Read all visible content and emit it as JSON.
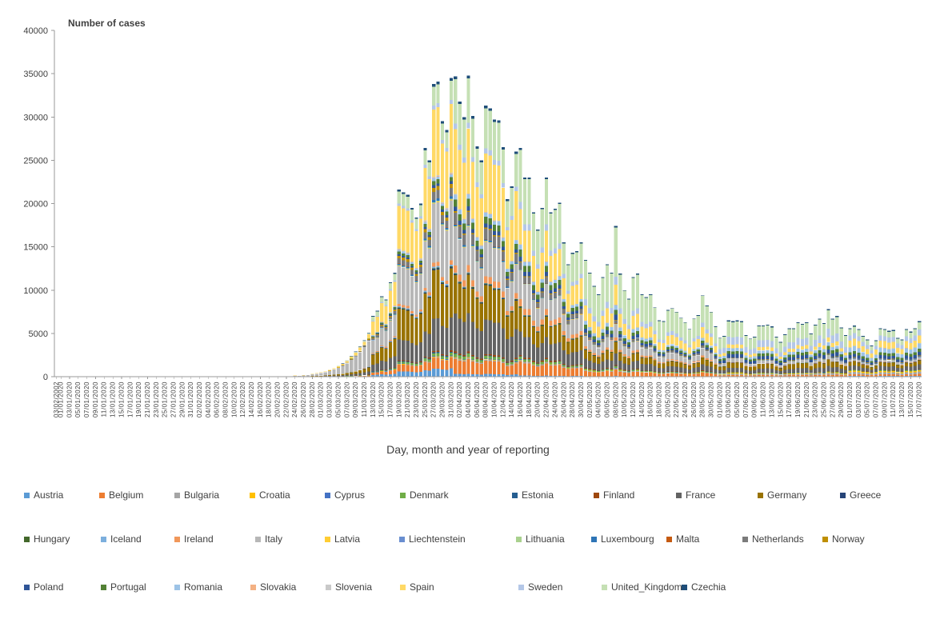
{
  "chart": {
    "title": "Number of cases",
    "xlabel": "Day, month and year of reporting"
  },
  "chart_data": {
    "type": "stacked-bar",
    "title": "Number of cases",
    "xlabel": "Day, month and year of reporting",
    "ylabel": "",
    "ylim": [
      0,
      40000
    ],
    "ytick_step": 5000,
    "grid": false,
    "legend_position": "bottom",
    "values_are_estimates": true,
    "x_axis": {
      "first_label": "03/02/2002",
      "daily_range_start": "01/01/2020",
      "daily_range_end": "17/07/2020",
      "tick_label_every_days": 2
    },
    "totals": [
      0,
      0,
      0,
      0,
      0,
      0,
      0,
      0,
      0,
      0,
      0,
      0,
      0,
      0,
      0,
      0,
      0,
      0,
      0,
      0,
      0,
      0,
      0,
      0,
      0,
      0,
      0,
      0,
      0,
      0,
      0,
      0,
      0,
      0,
      0,
      0,
      0,
      0,
      0,
      0,
      0,
      0,
      0,
      0,
      0,
      0,
      0,
      0,
      0,
      0,
      0,
      0,
      0,
      30,
      60,
      130,
      140,
      180,
      250,
      330,
      420,
      530,
      650,
      800,
      1000,
      1250,
      1550,
      1900,
      2400,
      2900,
      3500,
      4200,
      5100,
      7000,
      7600,
      9300,
      8900,
      10900,
      12000,
      21600,
      21300,
      21000,
      19500,
      18400,
      20000,
      26400,
      25000,
      33800,
      34100,
      29500,
      28500,
      34500,
      34700,
      31800,
      30000,
      34800,
      30100,
      26600,
      25000,
      31300,
      31000,
      29700,
      29600,
      26500,
      20500,
      22000,
      26000,
      26400,
      23000,
      23000,
      19000,
      17000,
      19500,
      23000,
      19000,
      19400,
      20100,
      15500,
      13000,
      14300,
      14500,
      15500,
      13500,
      12000,
      10500,
      9500,
      11500,
      13000,
      12000,
      17400,
      11900,
      10000,
      9000,
      11500,
      11900,
      9500,
      9200,
      9500,
      8000,
      6500,
      6400,
      7700,
      7900,
      7500,
      6800,
      6300,
      5500,
      6700,
      7100,
      9400,
      8200,
      7500,
      5800,
      4500,
      4700,
      6500,
      6400,
      6500,
      6400,
      4800,
      4400,
      4600,
      5900,
      5900,
      6000,
      5800,
      4600,
      4000,
      4900,
      5600,
      5600,
      6300,
      6100,
      6300,
      5000,
      6000,
      6700,
      6200,
      7800,
      6700,
      7000,
      5700,
      4800,
      5600,
      5900,
      5500,
      4700,
      4300,
      3600,
      4200,
      5600,
      5500,
      5300,
      5400,
      4500,
      4300,
      5500,
      5200,
      5600,
      6400
    ],
    "phase_starts": [
      73,
      92,
      107,
      122,
      153,
      183
    ],
    "series": [
      {
        "name": "Austria",
        "color": "#5B9BD5",
        "phase_weights": [
          0.01,
          0.03,
          0.01,
          0.005,
          0.004,
          0.008,
          0.015
        ]
      },
      {
        "name": "Belgium",
        "color": "#ED7D31",
        "phase_weights": [
          0.015,
          0.04,
          0.05,
          0.06,
          0.04,
          0.02,
          0.03
        ]
      },
      {
        "name": "Bulgaria",
        "color": "#A5A5A5",
        "phase_weights": [
          0.002,
          0.002,
          0.004,
          0.005,
          0.006,
          0.02,
          0.04
        ]
      },
      {
        "name": "Croatia",
        "color": "#FFC000",
        "phase_weights": [
          0.002,
          0.003,
          0.002,
          0.002,
          0.002,
          0.01,
          0.025
        ]
      },
      {
        "name": "Cyprus",
        "color": "#4472C4",
        "phase_weights": [
          0.001,
          0.002,
          0.002,
          0.002,
          0.001,
          0.002,
          0.002
        ]
      },
      {
        "name": "Denmark",
        "color": "#70AD47",
        "phase_weights": [
          0.01,
          0.01,
          0.01,
          0.01,
          0.01,
          0.01,
          0.01
        ]
      },
      {
        "name": "Estonia",
        "color": "#255E91",
        "phase_weights": [
          0.002,
          0.004,
          0.002,
          0.002,
          0.002,
          0.002,
          0.002
        ]
      },
      {
        "name": "Finland",
        "color": "#9E480E",
        "phase_weights": [
          0.005,
          0.005,
          0.005,
          0.006,
          0.006,
          0.004,
          0.003
        ]
      },
      {
        "name": "France",
        "color": "#636363",
        "phase_weights": [
          0.08,
          0.12,
          0.13,
          0.1,
          0.07,
          0.07,
          0.08
        ]
      },
      {
        "name": "Germany",
        "color": "#997300",
        "phase_weights": [
          0.1,
          0.18,
          0.13,
          0.1,
          0.07,
          0.08,
          0.07
        ]
      },
      {
        "name": "Greece",
        "color": "#264478",
        "phase_weights": [
          0.004,
          0.004,
          0.003,
          0.002,
          0.002,
          0.003,
          0.005
        ]
      },
      {
        "name": "Hungary",
        "color": "#43682B",
        "phase_weights": [
          0.002,
          0.003,
          0.003,
          0.004,
          0.004,
          0.003,
          0.003
        ]
      },
      {
        "name": "Iceland",
        "color": "#7CAFDD",
        "phase_weights": [
          0.006,
          0.006,
          0.002,
          0.001,
          0.001,
          0.001,
          0.001
        ]
      },
      {
        "name": "Ireland",
        "color": "#F1975A",
        "phase_weights": [
          0.005,
          0.015,
          0.025,
          0.03,
          0.02,
          0.005,
          0.004
        ]
      },
      {
        "name": "Italy",
        "color": "#B7B7B7",
        "phase_weights": [
          0.62,
          0.22,
          0.13,
          0.12,
          0.08,
          0.05,
          0.04
        ]
      },
      {
        "name": "Latvia",
        "color": "#FFCD33",
        "phase_weights": [
          0.001,
          0.002,
          0.001,
          0.001,
          0.001,
          0.001,
          0.001
        ]
      },
      {
        "name": "Liechtenstein",
        "color": "#698ED0",
        "phase_weights": [
          0.0005,
          0.0005,
          0.0003,
          0.0002,
          0.0002,
          0.0002,
          0.0002
        ]
      },
      {
        "name": "Lithuania",
        "color": "#A9D18E",
        "phase_weights": [
          0.002,
          0.003,
          0.002,
          0.002,
          0.002,
          0.002,
          0.002
        ]
      },
      {
        "name": "Luxembourg",
        "color": "#2E75B6",
        "phase_weights": [
          0.003,
          0.008,
          0.005,
          0.002,
          0.001,
          0.002,
          0.005
        ]
      },
      {
        "name": "Malta",
        "color": "#C55A11",
        "phase_weights": [
          0.001,
          0.001,
          0.001,
          0.001,
          0.001,
          0.001,
          0.001
        ]
      },
      {
        "name": "Netherlands",
        "color": "#7B7B7B",
        "phase_weights": [
          0.015,
          0.03,
          0.04,
          0.03,
          0.02,
          0.01,
          0.015
        ]
      },
      {
        "name": "Norway",
        "color": "#BF8F00",
        "phase_weights": [
          0.02,
          0.015,
          0.005,
          0.004,
          0.003,
          0.003,
          0.003
        ]
      },
      {
        "name": "Poland",
        "color": "#2F5597",
        "phase_weights": [
          0.003,
          0.01,
          0.015,
          0.02,
          0.03,
          0.06,
          0.06
        ]
      },
      {
        "name": "Portugal",
        "color": "#538135",
        "phase_weights": [
          0.005,
          0.015,
          0.025,
          0.03,
          0.03,
          0.05,
          0.055
        ]
      },
      {
        "name": "Romania",
        "color": "#9DC3E6",
        "phase_weights": [
          0.003,
          0.01,
          0.015,
          0.02,
          0.03,
          0.05,
          0.09
        ]
      },
      {
        "name": "Slovakia",
        "color": "#F4B183",
        "phase_weights": [
          0.001,
          0.002,
          0.001,
          0.001,
          0.001,
          0.001,
          0.002
        ]
      },
      {
        "name": "Slovenia",
        "color": "#C9C9C9",
        "phase_weights": [
          0.003,
          0.004,
          0.002,
          0.001,
          0.001,
          0.001,
          0.002
        ]
      },
      {
        "name": "Spain",
        "color": "#FFD966",
        "phase_weights": [
          0.1,
          0.25,
          0.22,
          0.15,
          0.12,
          0.06,
          0.13
        ]
      },
      {
        "name": "Sweden",
        "color": "#B4C7E7",
        "phase_weights": [
          0.015,
          0.015,
          0.02,
          0.03,
          0.05,
          0.12,
          0.1
        ]
      },
      {
        "name": "United_Kingdom",
        "color": "#C5E0B4",
        "phase_weights": [
          0.02,
          0.07,
          0.15,
          0.22,
          0.3,
          0.25,
          0.12
        ]
      },
      {
        "name": "Czechia",
        "color": "#1F4E79",
        "phase_weights": [
          0.01,
          0.01,
          0.01,
          0.008,
          0.008,
          0.015,
          0.02
        ]
      }
    ]
  }
}
